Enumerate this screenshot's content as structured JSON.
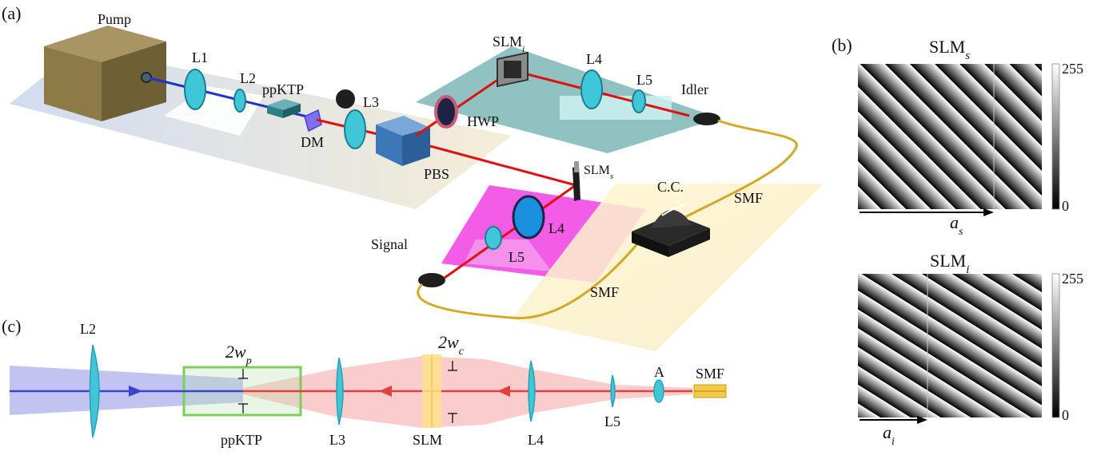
{
  "panels": {
    "a": "(a)",
    "b": "(b)",
    "c": "(c)"
  },
  "setup": {
    "pump": "Pump",
    "l1": "L1",
    "l2": "L2",
    "ppktp": "ppKTP",
    "dm": "DM",
    "l3": "L3",
    "pbs": "PBS",
    "slm_i": "SLM",
    "slm_i_sub": "i",
    "slm_s": "SLM",
    "slm_s_sub": "s",
    "hwp": "HWP",
    "l4_idler": "L4",
    "l5_idler": "L5",
    "idler": "Idler",
    "l4_signal": "L4",
    "l5_signal": "L5",
    "signal": "Signal",
    "cc": "C.C.",
    "smf_top": "SMF",
    "smf_bottom": "SMF"
  },
  "holograms": {
    "slm_s": {
      "title": "SLM",
      "sub": "s",
      "cbar_max": "255",
      "cbar_min": "0",
      "arrow_label": "a",
      "arrow_sub": "s"
    },
    "slm_i": {
      "title": "SLM",
      "sub": "i",
      "cbar_max": "255",
      "cbar_min": "0",
      "arrow_label": "a",
      "arrow_sub": "i"
    }
  },
  "unfolded": {
    "l2": "L2",
    "wp": "2w",
    "wp_sub": "p",
    "ppktp": "ppKTP",
    "l3": "L3",
    "slm": "SLM",
    "wc": "2w",
    "wc_sub": "c",
    "l4": "L4",
    "l5": "L5",
    "a": "A",
    "smf": "SMF"
  },
  "colors": {
    "pump_beam": "#2233cc",
    "sig_beam": "#e01010",
    "lens": "#3fc7d8",
    "fiber": "#d4a828",
    "magenta": "#f25ce6",
    "teal": "#8fc2c0"
  }
}
